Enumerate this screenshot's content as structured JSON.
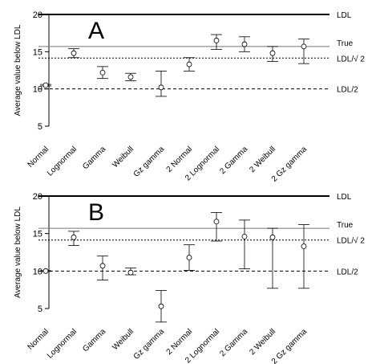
{
  "chart_data": [
    {
      "type": "errorbar",
      "panel_label": "A",
      "ylabel": "Average value below LDL",
      "ylim": [
        5,
        20
      ],
      "yticks": [
        5,
        10,
        15,
        20
      ],
      "categories": [
        "Normal",
        "Lognormal",
        "Gamma",
        "Weibull",
        "Gz gamma",
        "2 Normal",
        "2 Lognormal",
        "2 Gamma",
        "2 Weibull",
        "2 Gz gamma"
      ],
      "estimate": [
        10.5,
        14.8,
        12.2,
        11.6,
        10.2,
        13.3,
        16.5,
        16.0,
        14.8,
        15.7
      ],
      "lower": [
        10.4,
        14.2,
        11.4,
        11.1,
        9.0,
        12.4,
        15.3,
        15.0,
        13.7,
        13.4
      ],
      "upper": [
        10.6,
        15.4,
        13.0,
        12.1,
        12.4,
        14.2,
        17.3,
        17.0,
        15.7,
        16.7
      ],
      "reference_lines": [
        {
          "label": "LDL",
          "value": 20,
          "style": "thick"
        },
        {
          "label": "True",
          "value": 15.7,
          "style": "solid"
        },
        {
          "label": "LDL/√ 2",
          "value": 14.14,
          "style": "dotted"
        },
        {
          "label": "LDL/2",
          "value": 10,
          "style": "dashed"
        }
      ]
    },
    {
      "type": "errorbar",
      "panel_label": "B",
      "ylabel": "Average value below LDL",
      "ylim": [
        5,
        20
      ],
      "yticks": [
        5,
        10,
        15,
        20
      ],
      "categories": [
        "Normal",
        "Lognormal",
        "Gamma",
        "Weibull",
        "Gz gamma",
        "2 Normal",
        "2 Lognormal",
        "2 Gamma",
        "2 Weibull",
        "2 Gz gamma"
      ],
      "estimate": [
        10.0,
        14.5,
        10.7,
        9.8,
        5.3,
        11.8,
        16.6,
        14.6,
        14.5,
        13.3
      ],
      "lower": [
        9.95,
        13.4,
        8.8,
        9.5,
        3.2,
        10.1,
        14.0,
        10.3,
        7.7,
        7.7
      ],
      "upper": [
        10.05,
        15.3,
        12.0,
        10.4,
        7.4,
        13.5,
        17.8,
        16.8,
        15.7,
        16.2
      ],
      "reference_lines": [
        {
          "label": "LDL",
          "value": 20,
          "style": "thick"
        },
        {
          "label": "True",
          "value": 15.7,
          "style": "solid"
        },
        {
          "label": "LDL/√ 2",
          "value": 14.14,
          "style": "dotted"
        },
        {
          "label": "LDL/2",
          "value": 10,
          "style": "dashed"
        }
      ]
    }
  ]
}
